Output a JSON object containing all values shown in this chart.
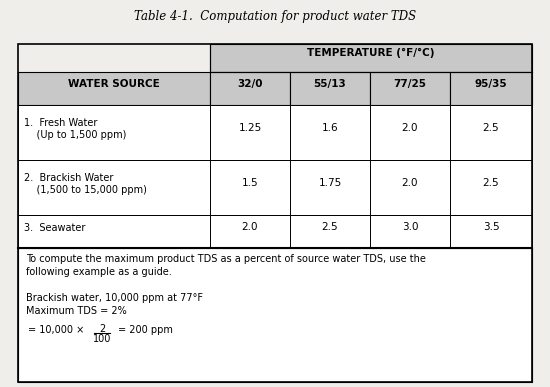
{
  "title": "Table 4-1.  Computation for product water TDS",
  "temp_header": "TEMPERATURE (°F/°C)",
  "col_headers": [
    "WATER SOURCE",
    "32/0",
    "55/13",
    "77/25",
    "95/35"
  ],
  "rows": [
    {
      "label": "1.  Fresh Water\n    (Up to 1,500 ppm)",
      "values": [
        "1.25",
        "1.6",
        "2.0",
        "2.5"
      ]
    },
    {
      "label": "2.  Brackish Water\n    (1,500 to 15,000 ppm)",
      "values": [
        "1.5",
        "1.75",
        "2.0",
        "2.5"
      ]
    },
    {
      "label": "3.  Seawater",
      "values": [
        "2.0",
        "2.5",
        "3.0",
        "3.5"
      ]
    }
  ],
  "footnote_lines": [
    "To compute the maximum product TDS as a percent of source water TDS, use the",
    "following example as a guide.",
    "",
    "Brackish water, 10,000 ppm at 77°F",
    "Maximum TDS = 2%"
  ],
  "header_bg": "#c8c8c8",
  "body_bg": "#ffffff",
  "border_color": "#000000",
  "text_color": "#000000",
  "fig_bg": "#f0eeeb"
}
